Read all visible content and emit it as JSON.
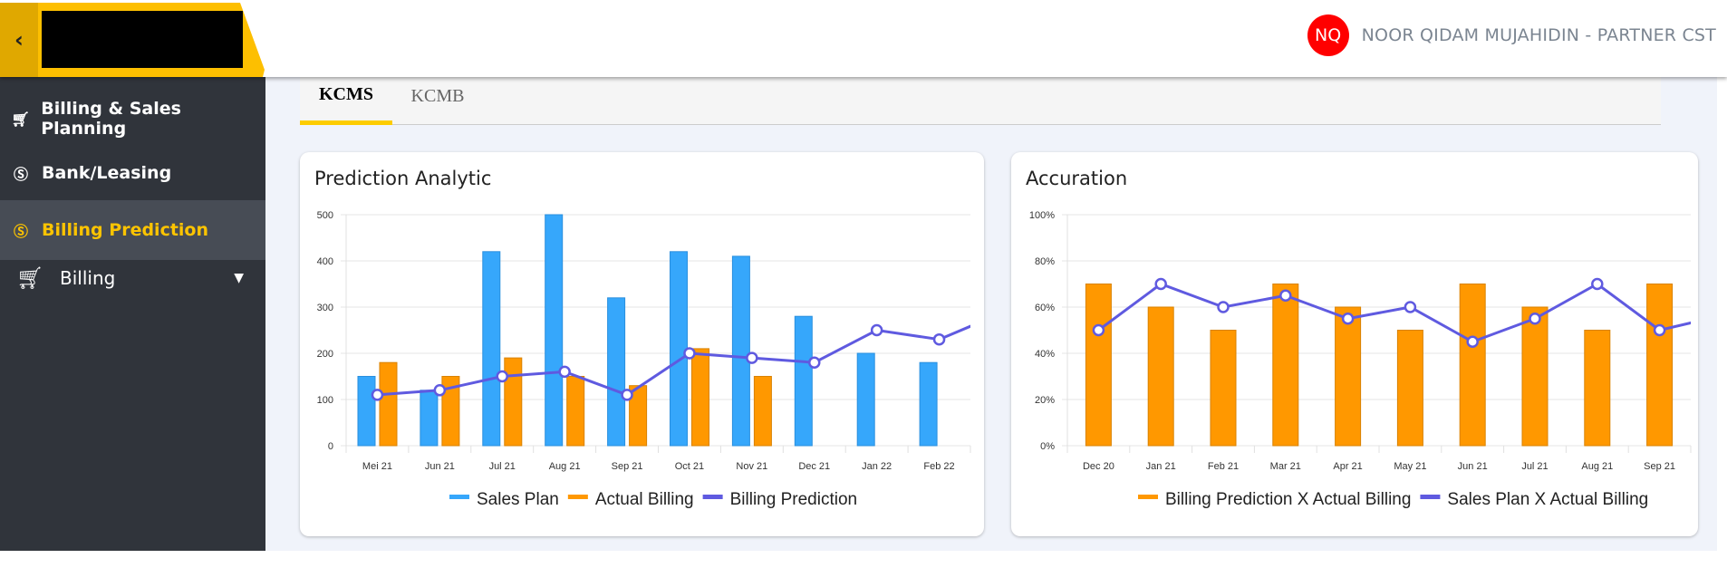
{
  "header": {
    "back_icon": "chevron-left-icon",
    "user": {
      "initials": "NQ",
      "name": "NOOR QIDAM MUJAHIDIN - PARTNER CST",
      "avatar_color": "#ff0000"
    }
  },
  "sidebar": {
    "items": [
      {
        "label": "Billing & Sales Planning",
        "icon": "cart-icon"
      },
      {
        "label": "Bank/Leasing",
        "icon": "dollar-circle-icon"
      },
      {
        "label": "Billing Prediction",
        "icon": "dollar-circle-icon",
        "active": true
      },
      {
        "label": "Billing",
        "icon": "cart-icon",
        "expandable": true
      }
    ]
  },
  "tabs": [
    {
      "label": "KCMS",
      "active": true
    },
    {
      "label": "KCMB"
    }
  ],
  "colors": {
    "accent": "#fdbf00",
    "sales_plan": "#36a7fb",
    "actual_billing": "#ff9800",
    "line": "#5f5ae0"
  },
  "chart_data": [
    {
      "type": "bar",
      "title": "Prediction Analytic",
      "categories": [
        "Mei 21",
        "Jun 21",
        "Jul 21",
        "Aug 21",
        "Sep 21",
        "Oct 21",
        "Nov 21",
        "Dec 21",
        "Jan 22",
        "Feb 22"
      ],
      "ylim": [
        0,
        500
      ],
      "yticks": [
        "0",
        "100",
        "200",
        "300",
        "400",
        "500"
      ],
      "grid": true,
      "legend": "bottom",
      "series": [
        {
          "name": "Sales Plan",
          "kind": "bar",
          "color": "#36a7fb",
          "values": [
            150,
            120,
            420,
            500,
            320,
            420,
            410,
            280,
            200,
            180
          ]
        },
        {
          "name": "Actual Billing",
          "kind": "bar",
          "color": "#ff9800",
          "values": [
            180,
            150,
            190,
            150,
            130,
            210,
            150,
            null,
            null,
            null
          ]
        },
        {
          "name": "Billing Prediction",
          "kind": "line",
          "color": "#5f5ae0",
          "values": [
            110,
            120,
            150,
            160,
            110,
            200,
            190,
            180,
            250,
            230
          ]
        }
      ]
    },
    {
      "type": "bar",
      "title": "Accuration",
      "categories": [
        "Dec 20",
        "Jan 21",
        "Feb 21",
        "Mar 21",
        "Apr 21",
        "May 21",
        "Jun 21",
        "Jul 21",
        "Aug 21",
        "Sep 21"
      ],
      "ylim": [
        0,
        100
      ],
      "yticks": [
        "0%",
        "20%",
        "40%",
        "60%",
        "80%",
        "100%"
      ],
      "grid": true,
      "legend": "bottom",
      "series": [
        {
          "name": "Billing Prediction X Actual Billing",
          "kind": "bar",
          "color": "#ff9800",
          "values": [
            70,
            60,
            50,
            70,
            60,
            50,
            70,
            60,
            50,
            70
          ]
        },
        {
          "name": "Sales Plan X Actual Billing",
          "kind": "line",
          "color": "#5f5ae0",
          "values": [
            50,
            70,
            60,
            65,
            55,
            60,
            45,
            55,
            70,
            50
          ]
        }
      ]
    }
  ]
}
